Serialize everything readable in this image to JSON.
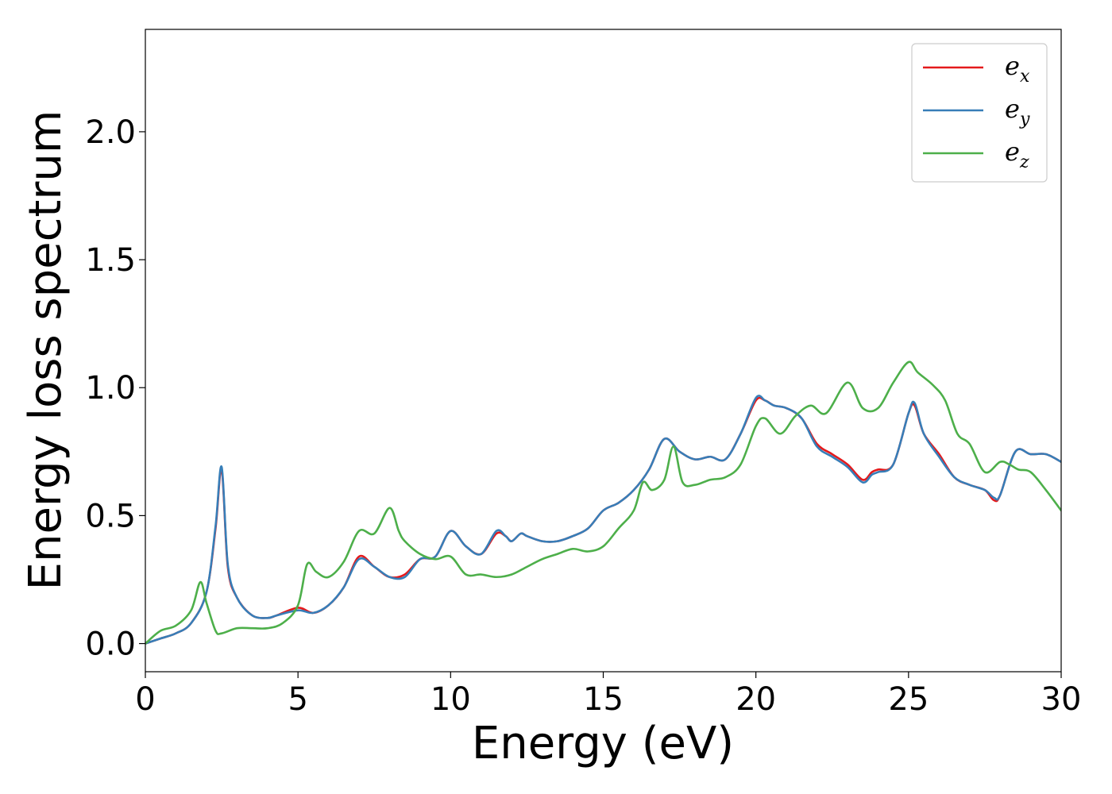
{
  "chart_data": {
    "type": "line",
    "title": "",
    "xlabel": "Energy (eV)",
    "ylabel": "Energy loss spectrum",
    "xlim": [
      0,
      30
    ],
    "ylim": [
      -0.11,
      2.4
    ],
    "xticks": [
      0,
      5,
      10,
      15,
      20,
      25,
      30
    ],
    "xtick_labels": [
      "0",
      "5",
      "10",
      "15",
      "20",
      "25",
      "30"
    ],
    "yticks": [
      0.0,
      0.5,
      1.0,
      1.5,
      2.0
    ],
    "ytick_labels": [
      "0.0",
      "0.5",
      "1.0",
      "1.5",
      "2.0"
    ],
    "grid": false,
    "legend_position": "top-right",
    "series": [
      {
        "name": "e_x",
        "label_base": "e",
        "label_sub": "x",
        "color": "#e41a1c",
        "x": [
          0,
          0.5,
          1.0,
          1.5,
          2.0,
          2.3,
          2.5,
          2.7,
          3.0,
          3.5,
          4.0,
          4.3,
          5.0,
          5.5,
          6.0,
          6.5,
          7.0,
          7.5,
          8.0,
          8.5,
          9.0,
          9.5,
          10.0,
          10.5,
          11.0,
          11.5,
          11.8,
          12.0,
          12.3,
          12.5,
          13.0,
          13.5,
          14.0,
          14.5,
          15.0,
          15.5,
          16.0,
          16.5,
          17.0,
          17.5,
          18.0,
          18.5,
          19.0,
          19.5,
          20.0,
          20.3,
          20.6,
          21.0,
          21.5,
          22.0,
          22.5,
          23.0,
          23.5,
          23.8,
          24.0,
          24.5,
          25.0,
          25.2,
          25.5,
          26.0,
          26.5,
          27.0,
          27.5,
          27.8,
          28.0,
          28.5,
          29.0,
          29.5,
          30.0
        ],
        "y": [
          0.0,
          0.02,
          0.04,
          0.08,
          0.2,
          0.45,
          0.68,
          0.3,
          0.18,
          0.11,
          0.1,
          0.11,
          0.14,
          0.12,
          0.15,
          0.22,
          0.34,
          0.3,
          0.26,
          0.27,
          0.33,
          0.34,
          0.44,
          0.38,
          0.35,
          0.43,
          0.42,
          0.4,
          0.43,
          0.42,
          0.4,
          0.4,
          0.42,
          0.45,
          0.52,
          0.55,
          0.6,
          0.68,
          0.8,
          0.75,
          0.72,
          0.73,
          0.72,
          0.82,
          0.95,
          0.95,
          0.93,
          0.92,
          0.88,
          0.78,
          0.74,
          0.7,
          0.64,
          0.67,
          0.68,
          0.7,
          0.9,
          0.93,
          0.82,
          0.74,
          0.65,
          0.62,
          0.6,
          0.56,
          0.58,
          0.75,
          0.74,
          0.74,
          0.71
        ]
      },
      {
        "name": "e_y",
        "label_base": "e",
        "label_sub": "y",
        "color": "#377eb8",
        "x": [
          0,
          0.5,
          1.0,
          1.5,
          2.0,
          2.3,
          2.5,
          2.7,
          3.0,
          3.5,
          4.0,
          4.3,
          5.0,
          5.5,
          6.0,
          6.5,
          7.0,
          7.5,
          8.0,
          8.5,
          9.0,
          9.5,
          10.0,
          10.5,
          11.0,
          11.5,
          11.8,
          12.0,
          12.3,
          12.5,
          13.0,
          13.5,
          14.0,
          14.5,
          15.0,
          15.5,
          16.0,
          16.5,
          17.0,
          17.5,
          18.0,
          18.5,
          19.0,
          19.5,
          20.0,
          20.3,
          20.6,
          21.0,
          21.5,
          22.0,
          22.5,
          23.0,
          23.5,
          23.8,
          24.0,
          24.5,
          25.0,
          25.2,
          25.5,
          26.0,
          26.5,
          27.0,
          27.5,
          27.8,
          28.0,
          28.5,
          29.0,
          29.5,
          30.0
        ],
        "y": [
          0.0,
          0.02,
          0.04,
          0.08,
          0.2,
          0.46,
          0.69,
          0.31,
          0.18,
          0.11,
          0.1,
          0.11,
          0.13,
          0.12,
          0.15,
          0.22,
          0.33,
          0.3,
          0.26,
          0.26,
          0.33,
          0.34,
          0.44,
          0.38,
          0.35,
          0.44,
          0.42,
          0.4,
          0.43,
          0.42,
          0.4,
          0.4,
          0.42,
          0.45,
          0.52,
          0.55,
          0.6,
          0.68,
          0.8,
          0.75,
          0.72,
          0.73,
          0.72,
          0.82,
          0.96,
          0.95,
          0.93,
          0.92,
          0.88,
          0.77,
          0.73,
          0.69,
          0.63,
          0.66,
          0.67,
          0.7,
          0.9,
          0.94,
          0.82,
          0.73,
          0.65,
          0.62,
          0.6,
          0.57,
          0.58,
          0.75,
          0.74,
          0.74,
          0.71
        ]
      },
      {
        "name": "e_z",
        "label_base": "e",
        "label_sub": "z",
        "color": "#4daf4a",
        "x": [
          0,
          0.5,
          1.0,
          1.5,
          1.8,
          2.0,
          2.3,
          2.5,
          3.0,
          3.5,
          4.0,
          4.5,
          5.0,
          5.3,
          5.6,
          6.0,
          6.5,
          7.0,
          7.5,
          8.0,
          8.3,
          8.5,
          9.0,
          9.5,
          10.0,
          10.5,
          11.0,
          11.5,
          12.0,
          12.5,
          13.0,
          13.5,
          14.0,
          14.5,
          15.0,
          15.5,
          16.0,
          16.3,
          16.6,
          17.0,
          17.3,
          17.6,
          18.0,
          18.5,
          19.0,
          19.5,
          20.0,
          20.3,
          20.8,
          21.3,
          21.8,
          22.3,
          23.0,
          23.5,
          24.0,
          24.5,
          25.0,
          25.3,
          25.8,
          26.2,
          26.6,
          27.0,
          27.5,
          28.0,
          28.3,
          28.6,
          29.0,
          29.5,
          30.0
        ],
        "y": [
          0.0,
          0.05,
          0.07,
          0.13,
          0.24,
          0.16,
          0.05,
          0.04,
          0.06,
          0.06,
          0.06,
          0.08,
          0.15,
          0.31,
          0.28,
          0.26,
          0.32,
          0.44,
          0.43,
          0.53,
          0.44,
          0.4,
          0.35,
          0.33,
          0.34,
          0.27,
          0.27,
          0.26,
          0.27,
          0.3,
          0.33,
          0.35,
          0.37,
          0.36,
          0.38,
          0.45,
          0.52,
          0.63,
          0.6,
          0.64,
          0.77,
          0.63,
          0.62,
          0.64,
          0.65,
          0.7,
          0.85,
          0.88,
          0.82,
          0.89,
          0.93,
          0.9,
          1.02,
          0.92,
          0.92,
          1.02,
          1.1,
          1.06,
          1.01,
          0.95,
          0.82,
          0.78,
          0.67,
          0.71,
          0.7,
          0.68,
          0.67,
          0.6,
          0.52
        ]
      }
    ]
  }
}
